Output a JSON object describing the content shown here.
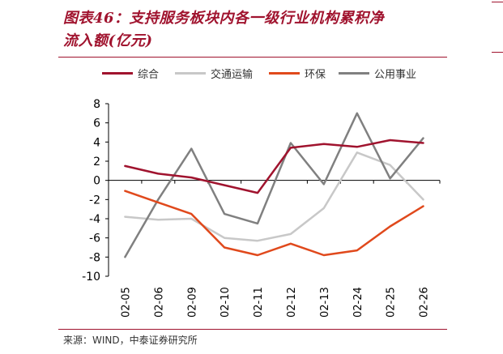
{
  "figure": {
    "title_line1": "图表46：支持服务板块内各一级行业机构累积净",
    "title_line2": "流入额(亿元)",
    "source": "来源：WIND，中泰证券研究所"
  },
  "colors": {
    "title": "#a0132e",
    "series": [
      "#a0132e",
      "#c8c8c8",
      "#e0491c",
      "#808080"
    ]
  },
  "chart_data": {
    "type": "line",
    "categories": [
      "02-05",
      "02-06",
      "02-09",
      "02-10",
      "02-11",
      "02-12",
      "02-13",
      "02-24",
      "02-25",
      "02-26"
    ],
    "series": [
      {
        "name": "综合",
        "values": [
          1.5,
          0.7,
          0.3,
          -0.5,
          -1.3,
          3.4,
          3.8,
          3.5,
          4.2,
          3.9
        ]
      },
      {
        "name": "交通运输",
        "values": [
          -3.8,
          -4.1,
          -4.0,
          -6.0,
          -6.3,
          -5.6,
          -2.9,
          2.9,
          1.6,
          -2.0
        ]
      },
      {
        "name": "环保",
        "values": [
          -1.1,
          -2.3,
          -3.5,
          -7.0,
          -7.8,
          -6.6,
          -7.8,
          -7.3,
          -4.8,
          -2.7
        ]
      },
      {
        "name": "公用事业",
        "values": [
          -8.0,
          -2.0,
          3.3,
          -3.5,
          -4.5,
          3.9,
          -0.4,
          7.0,
          0.2,
          4.4
        ]
      }
    ],
    "ylim": [
      -10,
      8
    ],
    "yticks": [
      8,
      6,
      4,
      2,
      0,
      -2,
      -4,
      -6,
      -8,
      -10
    ],
    "grid": false,
    "legend_position": "top"
  }
}
